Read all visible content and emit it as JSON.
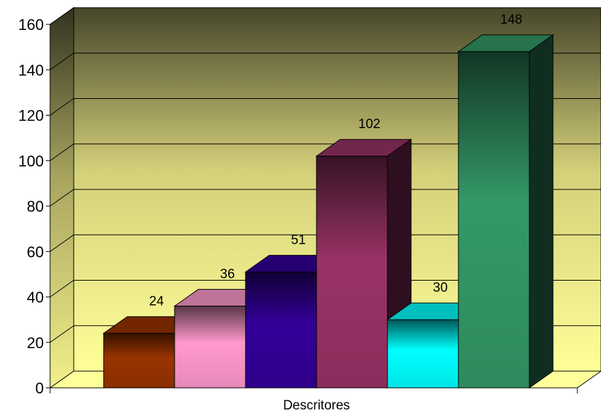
{
  "chart_data": {
    "type": "bar",
    "categories": [
      "Descritores"
    ],
    "series": [
      {
        "value": 24,
        "color": "#993300"
      },
      {
        "value": 36,
        "color": "#ff99cc"
      },
      {
        "value": 51,
        "color": "#330099"
      },
      {
        "value": 102,
        "color": "#993366"
      },
      {
        "value": 30,
        "color": "#00ffff"
      },
      {
        "value": 148,
        "color": "#339966"
      }
    ],
    "xlabel": "Descritores",
    "ylim": [
      0,
      160
    ],
    "yticks": [
      0,
      20,
      40,
      60,
      80,
      100,
      120,
      140,
      160
    ],
    "grid": true,
    "three_d": true,
    "background_gradient": [
      "#ffff99",
      "#4a4a2a"
    ]
  }
}
